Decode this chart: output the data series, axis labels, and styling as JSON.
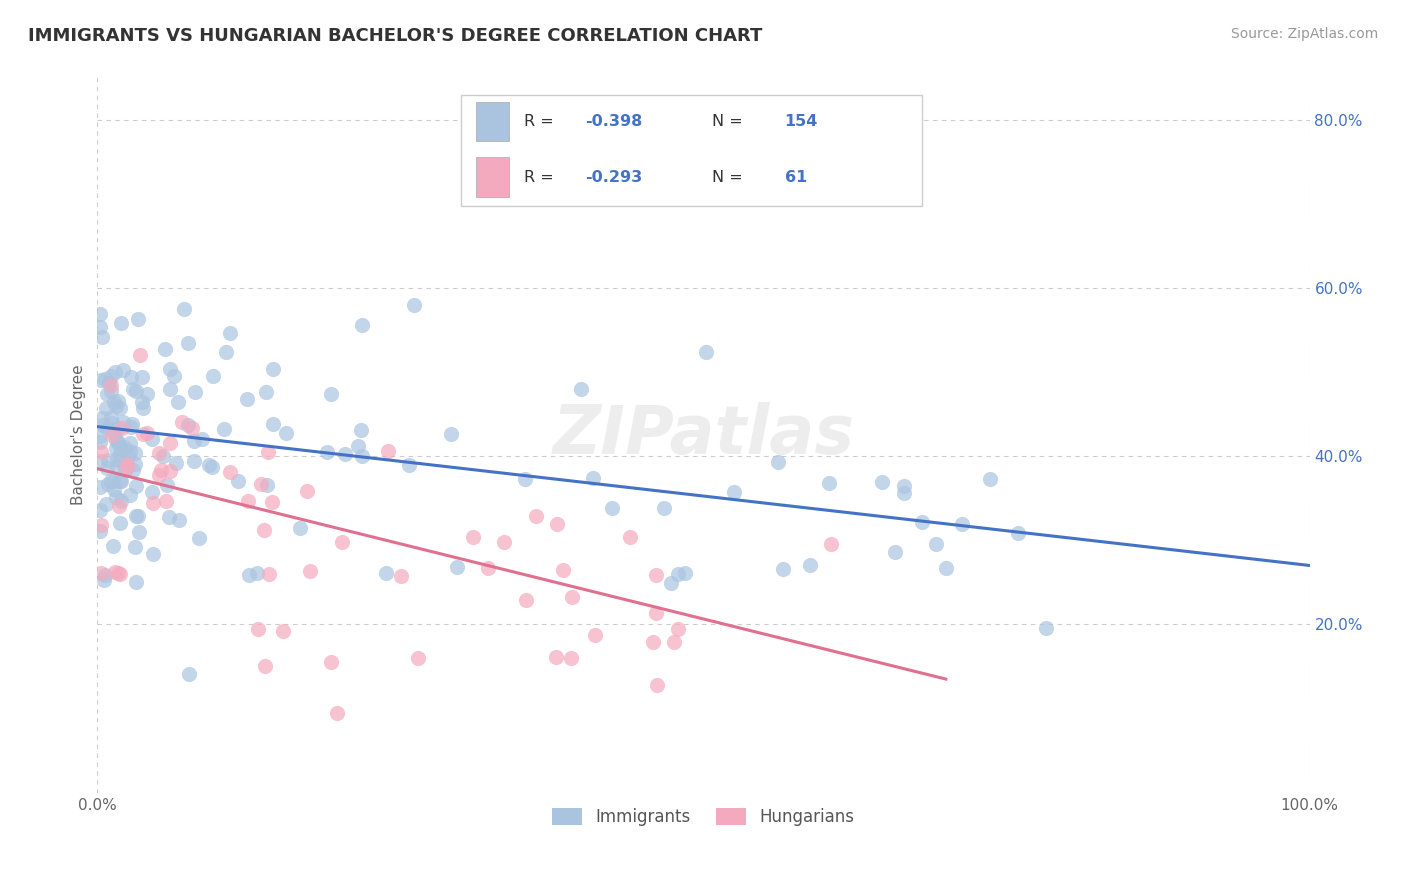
{
  "title": "IMMIGRANTS VS HUNGARIAN BACHELOR'S DEGREE CORRELATION CHART",
  "source": "Source: ZipAtlas.com",
  "ylabel": "Bachelor's Degree",
  "xlim": [
    0,
    100
  ],
  "ylim": [
    0,
    85
  ],
  "xtick_positions": [
    0,
    100
  ],
  "xtick_labels": [
    "0.0%",
    "100.0%"
  ],
  "ytick_positions": [
    20,
    40,
    60,
    80
  ],
  "ytick_labels": [
    "20.0%",
    "40.0%",
    "60.0%",
    "80.0%"
  ],
  "immigrants_color": "#aac4e0",
  "hungarians_color": "#f4aabe",
  "trend_immigrants_color": "#4472c4",
  "trend_hungarians_color": "#e07090",
  "watermark": "ZIPatlas",
  "background_color": "#ffffff",
  "grid_color": "#cccccc",
  "immigrants_n": 154,
  "hungarians_n": 61,
  "imm_trend_x0": 0,
  "imm_trend_y0": 43.5,
  "imm_trend_x1": 100,
  "imm_trend_y1": 27.0,
  "hun_trend_x0": 0,
  "hun_trend_y0": 38.5,
  "hun_trend_x1": 70,
  "hun_trend_y1": 13.5
}
